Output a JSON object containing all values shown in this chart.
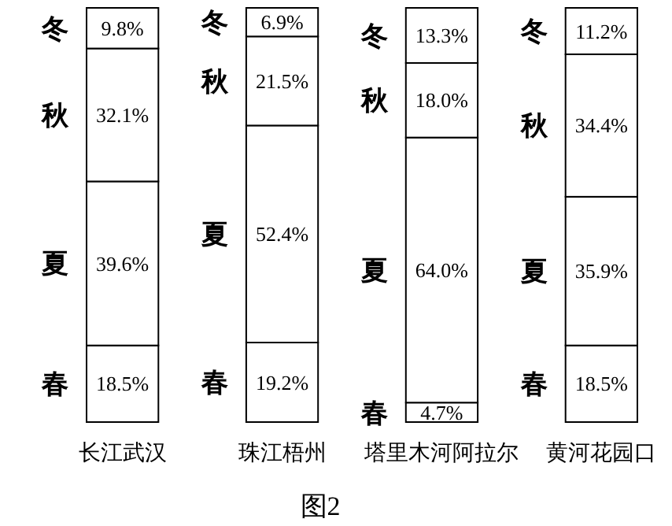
{
  "chart_data": {
    "type": "bar",
    "title": "图2",
    "stacked": true,
    "categories": [
      "长江武汉",
      "珠江梧州",
      "塔里木河阿拉尔",
      "黄河花园口"
    ],
    "series": [
      {
        "name": "春",
        "color": "#ffffff",
        "values": [
          18.5,
          19.2,
          4.7,
          18.5
        ],
        "value_labels": [
          "18.5%",
          "19.2%",
          "4.7%",
          "18.5%"
        ]
      },
      {
        "name": "夏",
        "color": "#ffffff",
        "values": [
          39.6,
          52.4,
          64.0,
          35.9
        ],
        "value_labels": [
          "39.6%",
          "52.4%",
          "64.0%",
          "35.9%"
        ]
      },
      {
        "name": "秋",
        "color": "#ffffff",
        "values": [
          32.1,
          21.5,
          18.0,
          34.4
        ],
        "value_labels": [
          "32.1%",
          "21.5%",
          "18.0%",
          "34.4%"
        ]
      },
      {
        "name": "冬",
        "color": "#ffffff",
        "values": [
          9.8,
          6.9,
          13.3,
          11.2
        ],
        "value_labels": [
          "9.8%",
          "6.9%",
          "13.3%",
          "11.2%"
        ]
      }
    ]
  }
}
